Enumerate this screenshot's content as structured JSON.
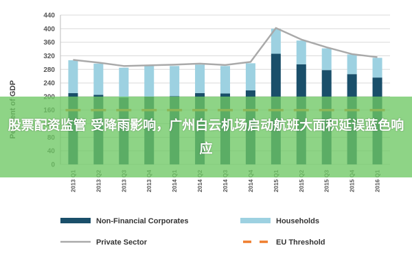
{
  "overlay": {
    "headline": "股票配资监管 受降雨影响，广州白云机场启动航班大面积延误蓝色响应"
  },
  "colors": {
    "non_financial": "#1a4f6a",
    "households": "#9dd1e1",
    "private_sector": "#a9a9a9",
    "eu_threshold": "#ef7d2d",
    "grid": "#d9d9d9"
  },
  "chart_data": {
    "type": "bar",
    "stacked": true,
    "ylabel": "Per Cent of GDP",
    "ylim": [
      0,
      440
    ],
    "yticks": [
      0,
      40,
      80,
      120,
      160,
      200,
      240,
      280,
      320,
      360,
      400,
      440
    ],
    "grid": true,
    "legend_position": "bottom",
    "categories": [
      "2013 Q1",
      "2013 Q2",
      "2013 Q3",
      "2013 Q4",
      "2014 Q1",
      "2014 Q2",
      "2014 Q3",
      "2014 Q4",
      "2015 Q1",
      "2015 Q2",
      "2015 Q3",
      "2015 Q4",
      "2016 Q1"
    ],
    "series": [
      {
        "name": "Non-Financial Corporates",
        "kind": "bar",
        "values": [
          210,
          205,
          197,
          200,
          201,
          210,
          209,
          218,
          326,
          295,
          278,
          266,
          256
        ]
      },
      {
        "name": "Households",
        "kind": "bar",
        "values": [
          97,
          92,
          88,
          90,
          89,
          84,
          81,
          80,
          74,
          70,
          64,
          58,
          58
        ]
      },
      {
        "name": "Private Sector",
        "kind": "line",
        "values": [
          308,
          300,
          290,
          292,
          294,
          297,
          293,
          302,
          402,
          368,
          345,
          325,
          316
        ]
      },
      {
        "name": "EU Threshold",
        "kind": "dashed-line",
        "values": [
          160,
          160,
          160,
          160,
          160,
          160,
          160,
          160,
          160,
          160,
          160,
          160,
          160
        ]
      }
    ]
  }
}
